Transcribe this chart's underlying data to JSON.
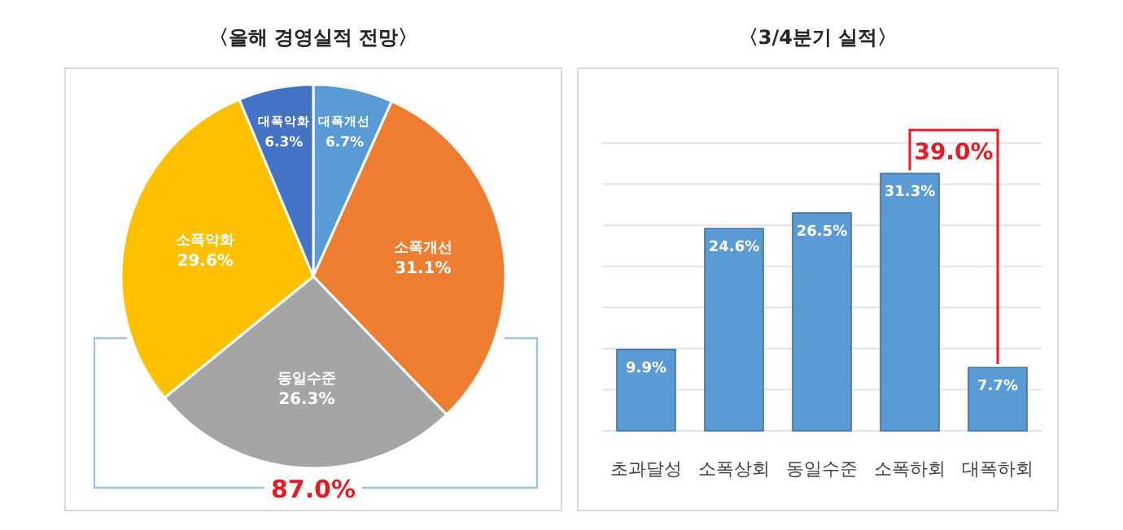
{
  "chart_data": [
    {
      "type": "pie",
      "title": "〈올해 경영실적 전망〉",
      "categories": [
        "대폭개선",
        "소폭개선",
        "동일수준",
        "소폭악화",
        "대폭악화"
      ],
      "values": [
        6.7,
        31.1,
        26.3,
        29.6,
        6.3
      ],
      "value_labels": [
        "6.7%",
        "31.1%",
        "26.3%",
        "29.6%",
        "6.3%"
      ],
      "colors": [
        "#5b9bd5",
        "#ed7d31",
        "#a5a5a5",
        "#ffc000",
        "#4472c4"
      ],
      "annotations": [
        "87.0%"
      ]
    },
    {
      "type": "bar",
      "title": "〈3/4분기 실적〉",
      "categories": [
        "초과달성",
        "소폭상회",
        "동일수준",
        "소폭하회",
        "대폭하회"
      ],
      "values": [
        9.9,
        24.6,
        26.5,
        31.3,
        7.7
      ],
      "value_labels": [
        "9.9%",
        "24.6%",
        "26.5%",
        "31.3%",
        "7.7%"
      ],
      "color": "#5b9bd5",
      "ylim": [
        0,
        35
      ],
      "yticks": [
        {
          "value": 0,
          "label": null
        },
        {
          "value": 5,
          "label": null
        },
        {
          "value": 10,
          "label": null
        },
        {
          "value": 15,
          "label": null
        },
        {
          "value": 20,
          "label": null
        },
        {
          "value": 25,
          "label": null
        },
        {
          "value": 30,
          "label": null
        },
        {
          "value": 35,
          "label": null
        }
      ],
      "grid": "y",
      "annotations": [
        "39.0%"
      ]
    }
  ]
}
